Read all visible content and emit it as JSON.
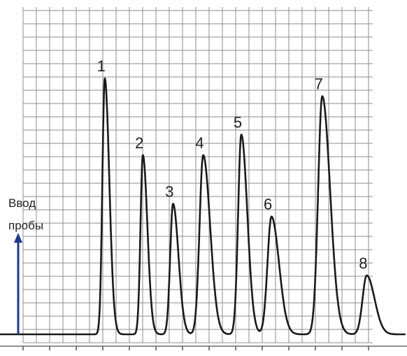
{
  "chart_data": {
    "type": "line",
    "title": "",
    "xlabel": "",
    "ylabel": "",
    "grid": true,
    "baseline": 0,
    "ylim": [
      0,
      100
    ],
    "peaks": [
      {
        "label": "1",
        "x": 6.6,
        "height": 100,
        "width": 0.15
      },
      {
        "label": "2",
        "x": 9.0,
        "height": 70,
        "width": 0.15
      },
      {
        "label": "3",
        "x": 10.9,
        "height": 51,
        "width": 0.18
      },
      {
        "label": "4",
        "x": 12.8,
        "height": 70,
        "width": 0.23
      },
      {
        "label": "5",
        "x": 15.2,
        "height": 78,
        "width": 0.2
      },
      {
        "label": "6",
        "x": 17.1,
        "height": 46,
        "width": 0.25
      },
      {
        "label": "7",
        "x": 20.3,
        "height": 93,
        "width": 0.26
      },
      {
        "label": "8",
        "x": 23.1,
        "height": 23,
        "width": 0.26
      }
    ],
    "annotation": {
      "text_line1": "Ввод",
      "text_line2": "пробы"
    },
    "colors": {
      "trace": "#1a1a1a",
      "grid": "#8c8c8c",
      "arrow": "#1f3a8a"
    }
  }
}
